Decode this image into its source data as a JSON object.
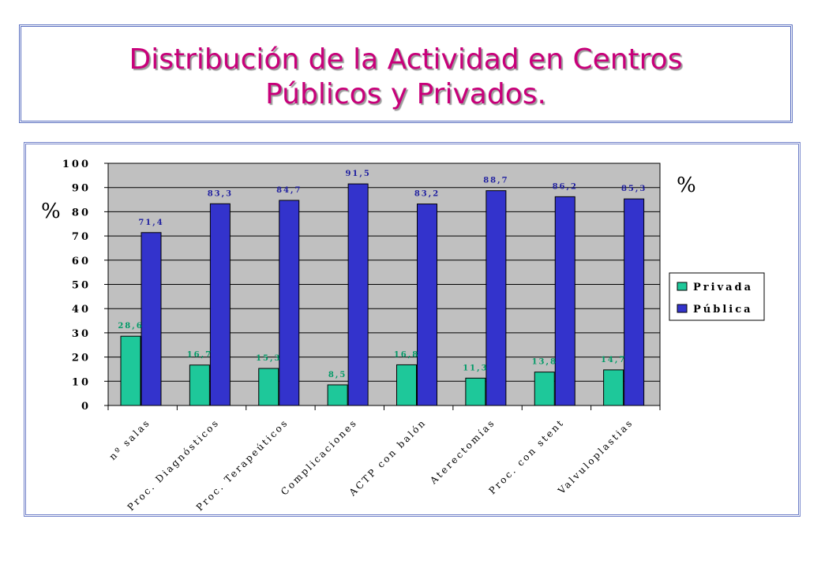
{
  "title": {
    "line1": "Distribución de la Actividad en Centros",
    "line2": "Públicos y Privados."
  },
  "chart_data": {
    "type": "bar",
    "categories": [
      "nº salas",
      "Proc. Diagnósticos",
      "Proc. Terapeúticos",
      "Complicaciones",
      "ACTP con balón",
      "Aterectomías",
      "Proc. con stent",
      "Valvuloplastias"
    ],
    "series": [
      {
        "name": "Privada",
        "values": [
          28.6,
          16.7,
          15.3,
          8.5,
          16.8,
          11.3,
          13.8,
          14.7
        ],
        "labels": [
          "28,6",
          "16,7",
          "15,3",
          "8,5",
          "16,8",
          "11,3",
          "13,8",
          "14,7"
        ],
        "color": "#1ec89a",
        "label_color": "#009a66"
      },
      {
        "name": "Pública",
        "values": [
          71.4,
          83.3,
          84.7,
          91.5,
          83.2,
          88.7,
          86.2,
          85.3
        ],
        "labels": [
          "71,4",
          "83,3",
          "84,7",
          "91,5",
          "83,2",
          "88,7",
          "86,2",
          "85,3"
        ],
        "color": "#3333cc",
        "label_color": "#2020a0"
      }
    ],
    "ylim": [
      0,
      100
    ],
    "yticks": [
      0,
      10,
      20,
      30,
      40,
      50,
      60,
      70,
      80,
      90,
      100
    ],
    "ylabel_left": "%",
    "ylabel_right": "%",
    "plot_background": "#c0c0c0",
    "grid": true,
    "legend_position": "right"
  }
}
